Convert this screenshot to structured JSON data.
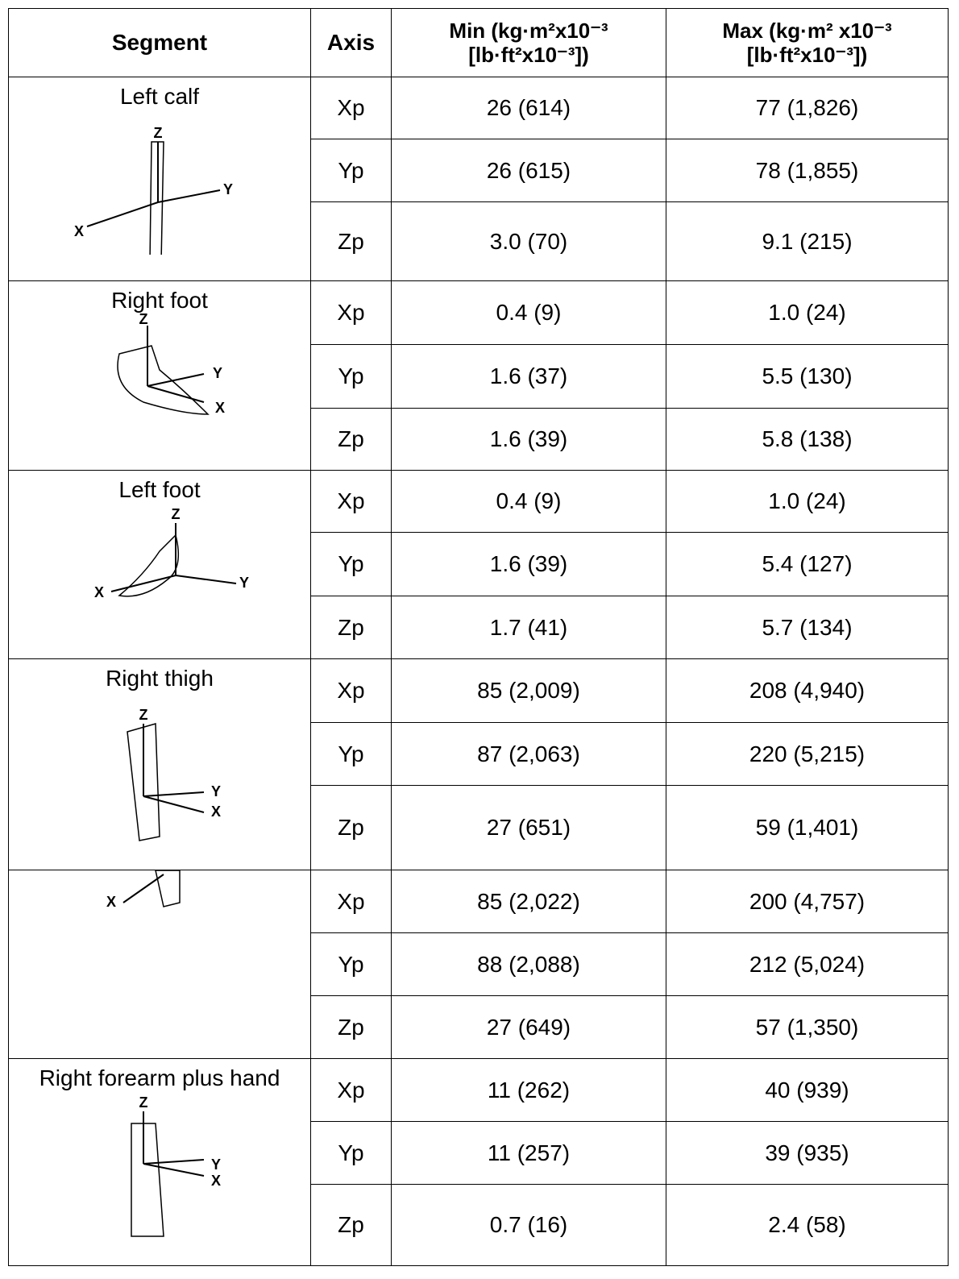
{
  "table": {
    "header": {
      "segment": "Segment",
      "axis": "Axis",
      "min": [
        "Min (kg·m²x10⁻³",
        "[lb·ft²x10⁻³])"
      ],
      "max": [
        "Max (kg·m² x10⁻³",
        "[lb·ft²x10⁻³])"
      ]
    },
    "segments": [
      {
        "name": "Left calf",
        "figure_labels": [
          "Z",
          "Y",
          "X"
        ],
        "rows": [
          {
            "axis": "Xp",
            "min": "26 (614)",
            "max": "77 (1,826)"
          },
          {
            "axis": "Yp",
            "min": "26 (615)",
            "max": "78 (1,855)"
          },
          {
            "axis": "Zp",
            "min": "3.0 (70)",
            "max": "9.1 (215)"
          }
        ]
      },
      {
        "name": "Right foot",
        "figure_labels": [
          "Z",
          "Y",
          "X"
        ],
        "rows": [
          {
            "axis": "Xp",
            "min": "0.4 (9)",
            "max": "1.0 (24)"
          },
          {
            "axis": "Yp",
            "min": "1.6 (37)",
            "max": "5.5 (130)"
          },
          {
            "axis": "Zp",
            "min": "1.6 (39)",
            "max": "5.8 (138)"
          }
        ]
      },
      {
        "name": "Left foot",
        "figure_labels": [
          "Z",
          "Y",
          "X"
        ],
        "rows": [
          {
            "axis": "Xp",
            "min": "0.4 (9)",
            "max": "1.0 (24)"
          },
          {
            "axis": "Yp",
            "min": "1.6 (39)",
            "max": "5.4 (127)"
          },
          {
            "axis": "Zp",
            "min": "1.7 (41)",
            "max": "5.7 (134)"
          }
        ]
      },
      {
        "name": "Right thigh",
        "figure_labels": [
          "Z",
          "Y",
          "X"
        ],
        "rows": [
          {
            "axis": "Xp",
            "min": "85 (2,009)",
            "max": "208 (4,940)"
          },
          {
            "axis": "Yp",
            "min": "87 (2,063)",
            "max": "220 (5,215)"
          },
          {
            "axis": "Zp",
            "min": "27 (651)",
            "max": "59 (1,401)"
          }
        ]
      },
      {
        "figure_labels": [
          "X"
        ],
        "rows": [
          {
            "axis": "Xp",
            "min": "85 (2,022)",
            "max": "200 (4,757)"
          },
          {
            "axis": "Yp",
            "min": "88 (2,088)",
            "max": "212 (5,024)"
          },
          {
            "axis": "Zp",
            "min": "27 (649)",
            "max": "57 (1,350)"
          }
        ]
      },
      {
        "name": "Right forearm plus hand",
        "figure_labels": [
          "Z",
          "Y",
          "X"
        ],
        "rows": [
          {
            "axis": "Xp",
            "min": "11 (262)",
            "max": "40 (939)"
          },
          {
            "axis": "Yp",
            "min": "11 (257)",
            "max": "39 (935)"
          },
          {
            "axis": "Zp",
            "min": "0.7 (16)",
            "max": "2.4 (58)"
          }
        ]
      }
    ]
  }
}
